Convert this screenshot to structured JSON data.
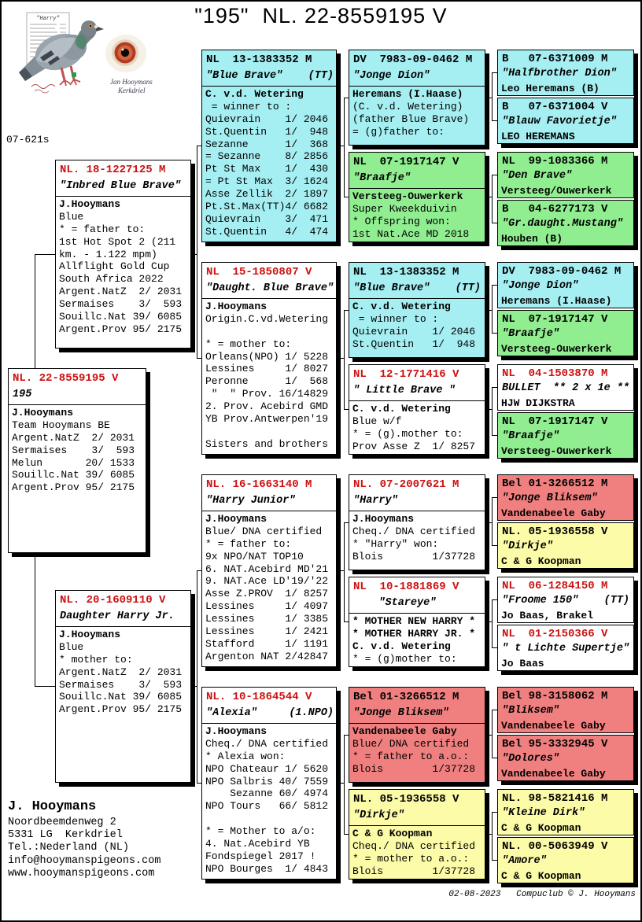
{
  "page": {
    "title": "\"195\"  NL. 22-8559195 V",
    "ring_note": "07-621s",
    "footer": "02-08-2023   Compuclub © J. Hooymans"
  },
  "photo": {
    "card_title": "\"Harry\"",
    "caption_name": "Jan Hooymans",
    "caption_city": "Kerkdriel"
  },
  "contact": {
    "name": "J. Hooymans",
    "lines": [
      "Noordbeemdenweg 2",
      "5331 LG  Kerkdriel",
      "Tel.:Nederland (NL)",
      "info@hooymanspigeons.com",
      "www.hooymanspigeons.com"
    ]
  },
  "colors": {
    "cyan": "#a5eef2",
    "green": "#90ee90",
    "pink": "#f08080",
    "yellow": "#fbfba8",
    "white": "#ffffff",
    "red_header": "#cc1111"
  },
  "boxes": {
    "subject": {
      "id": "NL. 22-8559195 V",
      "name": "195",
      "body": [
        "J.Hooymans",
        "Team Hooymans BE",
        "Argent.NatZ  2/ 2031",
        "Sermaises    3/  593",
        "Melun       20/ 1533",
        "Souillc.Nat 39/ 6085",
        "Argent.Prov 95/ 2175"
      ],
      "bold": [
        0
      ]
    },
    "father": {
      "id": "NL. 18-1227125 M",
      "name": "\"Inbred Blue Brave\"",
      "body": [
        "J.Hooymans",
        "Blue",
        "* = father to:",
        "1st Hot Spot 2 (211",
        "km. - 1.122 mpm)",
        "Allflight Gold Cup",
        "South Africa 2022",
        "Argent.NatZ  2/ 2031",
        "Sermaises    3/  593",
        "Souillc.Nat 39/ 6085",
        "Argent.Prov 95/ 2175"
      ],
      "bold": [
        0
      ]
    },
    "mother": {
      "id": "NL. 20-1609110 V",
      "name": "Daughter Harry Jr.",
      "body": [
        "J.Hooymans",
        "Blue",
        "* mother to:",
        "Argent.NatZ  2/ 2031",
        "Sermaises    3/  593",
        "Souillc.Nat 39/ 6085",
        "Argent.Prov 95/ 2175"
      ],
      "bold": [
        0
      ]
    },
    "g3_1": {
      "id": "NL  13-1383352 M",
      "name": "\"Blue Brave\"    (TT)",
      "body": [
        "C. v.d. Wetering",
        " = winner to :",
        "Quievrain    1/ 2046",
        "St.Quentin   1/  948",
        "Sezanne      1/  368",
        "= Sezanne    8/ 2856",
        "Pt St Max    1/  430",
        "= Pt St Max  3/ 1624",
        "Asse Zellik  2/ 1897",
        "Pt.St.Max(TT)4/ 6682",
        "Quievrain    3/  471",
        "St.Quentin   4/  474"
      ],
      "bold": [
        0
      ]
    },
    "g3_2": {
      "id": "NL  15-1850807 V",
      "name": "\"Daught. Blue Brave\"",
      "body": [
        "J.Hooymans",
        "Origin.C.vd.Wetering",
        "",
        "* = mother to:",
        "Orleans(NPO) 1/ 5228",
        "Lessines     1/ 8027",
        "Peronne      1/  568",
        " \"  \" Prov. 16/14829",
        "2. Prov. Acebird GMD",
        "YB Prov.Antwerpen'19",
        "",
        "Sisters and brothers"
      ],
      "bold": [
        0
      ]
    },
    "g3_3": {
      "id": "NL. 16-1663140 M",
      "name": "\"Harry Junior\"",
      "body": [
        "J.Hooymans",
        "Blue/ DNA certified",
        "* = father to:",
        "9x NPO/NAT TOP10",
        "6. NAT.Acebird MD'21",
        "9. NAT.Ace LD'19/'22",
        "Asse Z.PROV  1/ 8257",
        "Lessines     1/ 4097",
        "Lessines     1/ 3385",
        "Lessines     1/ 2421",
        "Stafford     1/ 1191",
        "Argenton NAT 2/42847"
      ],
      "bold": [
        0
      ]
    },
    "g3_4": {
      "id": "NL. 10-1864544 V",
      "name": "\"Alexia\"     (1.NPO)",
      "body": [
        "J.Hooymans",
        "Cheq./ DNA certified",
        "* Alexia won:",
        "NPO Chateaur 1/ 5620",
        "NPO Salbris 40/ 7559",
        "    Sezanne 60/ 4974",
        "NPO Tours   66/ 5812",
        "",
        "* = Mother to a/o:",
        "4. Nat.Acebird YB",
        "Fondspiegel 2017 !",
        "NPO Bourges  1/ 4843"
      ],
      "bold": [
        0
      ]
    },
    "g4_1a": {
      "id": "DV  7983-09-0462 M",
      "name": "\"Jonge Dion\"",
      "body": [
        "Heremans (I.Haase)",
        "(C. v.d. Wetering)",
        "(father Blue Brave)",
        "= (g)father to:"
      ],
      "bold": [
        0
      ]
    },
    "g4_1b": {
      "id": "NL  07-1917147 V",
      "name": "\"Braafje\"",
      "body": [
        "Versteeg-Ouwerkerk",
        "Super Kweekduivin",
        "* Offspring won:",
        "1st Nat.Ace MD 2018"
      ],
      "bold": [
        0
      ]
    },
    "g4_2a": {
      "id": "NL  13-1383352 M",
      "name": "\"Blue Brave\"    (TT)",
      "body": [
        "C. v.d. Wetering",
        " = winner to :",
        "Quievrain    1/ 2046",
        "St.Quentin   1/  948"
      ],
      "bold": [
        0
      ]
    },
    "g4_2b": {
      "id": "NL  12-1771416 V",
      "name": "\" Little Brave \"",
      "body": [
        "C. v.d. Wetering",
        "Blue w/f",
        "* = (g).mother to:",
        "Prov Asse Z  1/ 8257"
      ],
      "bold": [
        0
      ]
    },
    "g4_3a": {
      "id": "NL. 07-2007621 M",
      "name": "\"Harry\"",
      "body": [
        "J.Hooymans",
        "Cheq./ DNA certified",
        "* \"Harry\" won:",
        "Blois        1/37728"
      ],
      "bold": [
        0
      ]
    },
    "g4_3b": {
      "id": "NL  10-1881869 V",
      "name": "    \"Stareye\"",
      "body": [
        "* MOTHER NEW HARRY *",
        "* MOTHER HARRY JR. *",
        "C. v.d. Wetering",
        "* = (g)mother to:"
      ],
      "bold": [
        0,
        1,
        2
      ]
    },
    "g4_4a": {
      "id": "Bel 01-3266512 M",
      "name": "\"Jonge Bliksem\"",
      "body": [
        "Vandenabeele Gaby",
        "Blue/ DNA certified",
        "* = father to a.o.:",
        "Blois        1/37728"
      ],
      "bold": [
        0
      ]
    },
    "g4_4b": {
      "id": "NL. 05-1936558 V",
      "name": "\"Dirkje\"",
      "body": [
        "C & G Koopman",
        "Cheq./ DNA certified",
        "* = mother to a.o.:",
        "Blois        1/37728"
      ],
      "bold": [
        0
      ]
    },
    "g5_1": {
      "id": "B   07-6371009 M",
      "name": "\"Halfbrother Dion\"",
      "body": [
        "Leo Heremans (B)"
      ],
      "bold": [
        0
      ]
    },
    "g5_2": {
      "id": "B   07-6371004 V",
      "name": "\"Blauw Favorietje\"",
      "body": [
        "LEO HEREMANS"
      ],
      "bold": [
        0
      ]
    },
    "g5_3": {
      "id": "NL  99-1083366 M",
      "name": "\"Den Brave\"",
      "body": [
        "Versteeg/Ouwerkerk"
      ],
      "bold": [
        0
      ]
    },
    "g5_4": {
      "id": "B   04-6277173 V",
      "name": "\"Gr.daught.Mustang\"",
      "body": [
        "Houben (B)"
      ],
      "bold": [
        0
      ]
    },
    "g5_5": {
      "id": "DV  7983-09-0462 M",
      "name": "\"Jonge Dion\"",
      "body": [
        "Heremans (I.Haase)"
      ],
      "bold": [
        0
      ]
    },
    "g5_6": {
      "id": "NL  07-1917147 V",
      "name": "\"Braafje\"",
      "body": [
        "Versteeg-Ouwerkerk"
      ],
      "bold": [
        0
      ]
    },
    "g5_7": {
      "id": "NL  04-1503870 M",
      "name": "BULLET  ** 2 x 1e **",
      "body": [
        "HJW DIJKSTRA"
      ],
      "bold": [
        0
      ]
    },
    "g5_8": {
      "id": "NL  07-1917147 V",
      "name": "\"Braafje\"",
      "body": [
        "Versteeg-Ouwerkerk"
      ],
      "bold": [
        0
      ]
    },
    "g5_9": {
      "id": "Bel 01-3266512 M",
      "name": "\"Jonge Bliksem\"",
      "body": [
        "Vandenabeele Gaby"
      ],
      "bold": [
        0
      ]
    },
    "g5_10": {
      "id": "NL. 05-1936558 V",
      "name": "\"Dirkje\"",
      "body": [
        "C & G Koopman"
      ],
      "bold": [
        0
      ]
    },
    "g5_11": {
      "id": "NL  06-1284150 M",
      "name": "\"Froome 150\"    (TT)",
      "body": [
        "Jo Baas, Brakel"
      ],
      "bold": [
        0
      ]
    },
    "g5_12": {
      "id": "NL  01-2150366 V",
      "name": "\" t Lichte Supertje\"",
      "body": [
        "Jo Baas"
      ],
      "bold": [
        0
      ]
    },
    "g5_13": {
      "id": "Bel 98-3158062 M",
      "name": "\"Bliksem\"",
      "body": [
        "Vandenabeele Gaby"
      ],
      "bold": [
        0
      ]
    },
    "g5_14": {
      "id": "Bel 95-3332945 V",
      "name": "\"Dolores\"",
      "body": [
        "Vandenabeele Gaby"
      ],
      "bold": [
        0
      ]
    },
    "g5_15": {
      "id": "NL. 98-5821416 M",
      "name": "\"Kleine Dirk\"",
      "body": [
        "C & G Koopman"
      ],
      "bold": [
        0
      ]
    },
    "g5_16": {
      "id": "NL. 00-5063949 V",
      "name": "\"Amore\"",
      "body": [
        "C & G Koopman"
      ],
      "bold": [
        0
      ]
    }
  }
}
